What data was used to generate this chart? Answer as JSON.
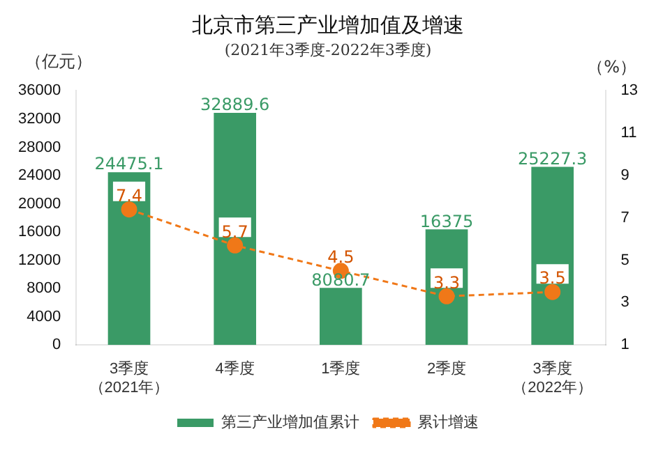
{
  "chart_data": {
    "type": "bar",
    "title": "北京市第三产业增加值及增速",
    "subtitle": "(2021年3季度-2022年3季度)",
    "ylabel": "（亿元）",
    "y2label": "（%）",
    "categories": [
      "3季度（2021年）",
      "4季度",
      "1季度",
      "2季度",
      "3季度（2022年）"
    ],
    "series": [
      {
        "name": "第三产业增加值累计",
        "color": "#3a9a66",
        "values": [
          24475.1,
          32889.6,
          8080.7,
          16375,
          25227.3
        ]
      },
      {
        "name": "累计增速",
        "type": "line",
        "axis": "y2",
        "color": "#f07818",
        "line_style": "dashed",
        "marker": "circle",
        "values": [
          7.4,
          5.7,
          4.5,
          3.3,
          3.5
        ]
      }
    ],
    "ylim": [
      0,
      36000
    ],
    "yticks": [
      0,
      4000,
      8000,
      12000,
      16000,
      20000,
      24000,
      28000,
      32000,
      36000
    ],
    "y2lim": [
      1,
      13
    ],
    "y2ticks": [
      1,
      3,
      5,
      7,
      9,
      11,
      13
    ],
    "grid": false,
    "legend": "bottom",
    "data_labels": true
  }
}
